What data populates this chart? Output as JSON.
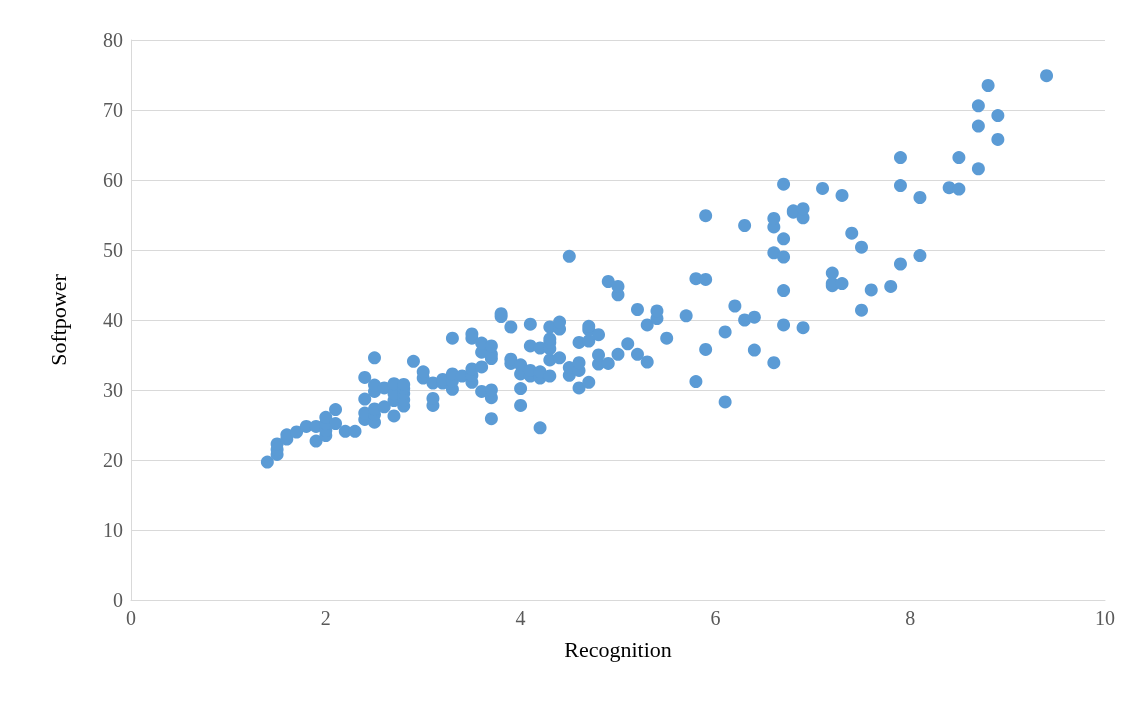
{
  "chart_data": {
    "type": "scatter",
    "xlabel": "Recognition",
    "ylabel": "Softpower",
    "xlim": [
      0,
      10
    ],
    "xticks": [
      0,
      2,
      4,
      6,
      8,
      10
    ],
    "ylim": [
      0,
      80
    ],
    "yticks": [
      0,
      10,
      20,
      30,
      40,
      50,
      60,
      70,
      80
    ],
    "grid": "y",
    "marker": "circle",
    "series": [
      {
        "color": "#5b9bd5",
        "x": [
          1.4,
          1.5,
          1.5,
          1.5,
          1.6,
          1.6,
          1.7,
          1.8,
          1.9,
          1.9,
          2.0,
          2.0,
          2.0,
          2.0,
          2.1,
          2.1,
          2.2,
          2.3,
          2.4,
          2.4,
          2.4,
          2.4,
          2.5,
          2.5,
          2.5,
          2.5,
          2.5,
          2.5,
          2.6,
          2.6,
          2.7,
          2.7,
          2.7,
          2.7,
          2.8,
          2.8,
          2.8,
          2.8,
          2.8,
          2.9,
          3.0,
          3.0,
          3.1,
          3.1,
          3.1,
          3.2,
          3.2,
          3.3,
          3.3,
          3.3,
          3.3,
          3.4,
          3.5,
          3.5,
          3.5,
          3.5,
          3.5,
          3.6,
          3.6,
          3.6,
          3.6,
          3.7,
          3.7,
          3.7,
          3.7,
          3.7,
          3.7,
          3.8,
          3.8,
          3.9,
          3.9,
          3.9,
          4.0,
          4.0,
          4.0,
          4.0,
          4.1,
          4.1,
          4.1,
          4.1,
          4.2,
          4.2,
          4.2,
          4.2,
          4.3,
          4.3,
          4.3,
          4.3,
          4.3,
          4.3,
          4.4,
          4.4,
          4.4,
          4.5,
          4.5,
          4.5,
          4.6,
          4.6,
          4.6,
          4.6,
          4.7,
          4.7,
          4.7,
          4.7,
          4.8,
          4.8,
          4.8,
          4.9,
          4.9,
          5.0,
          5.0,
          5.0,
          5.1,
          5.2,
          5.2,
          5.3,
          5.3,
          5.4,
          5.4,
          5.5,
          5.7,
          5.8,
          5.8,
          5.9,
          5.9,
          5.9,
          6.1,
          6.1,
          6.2,
          6.3,
          6.3,
          6.4,
          6.4,
          6.6,
          6.6,
          6.6,
          6.6,
          6.7,
          6.7,
          6.7,
          6.7,
          6.7,
          6.8,
          6.8,
          6.9,
          6.9,
          6.9,
          7.1,
          7.2,
          7.2,
          7.2,
          7.3,
          7.3,
          7.4,
          7.5,
          7.5,
          7.6,
          7.8,
          7.9,
          7.9,
          7.9,
          8.1,
          8.1,
          8.4,
          8.5,
          8.5,
          8.7,
          8.7,
          8.7,
          8.8,
          8.9,
          8.9,
          9.4
        ],
        "values": [
          19.7,
          20.8,
          21.5,
          22.3,
          23,
          23.6,
          24,
          24.8,
          22.7,
          24.8,
          23.5,
          24.2,
          25.2,
          26.1,
          27.2,
          25.2,
          24.1,
          24.1,
          25.8,
          26.7,
          28.7,
          31.8,
          25.4,
          26.5,
          27.3,
          29.8,
          30.7,
          34.6,
          27.6,
          30.3,
          26.3,
          28.5,
          29.5,
          30.9,
          27.7,
          28.6,
          29.5,
          30.2,
          30.8,
          34.1,
          31.7,
          32.6,
          27.8,
          28.8,
          31.0,
          31.0,
          31.5,
          30.1,
          31.3,
          32.3,
          37.4,
          32.0,
          31.1,
          32.1,
          33.0,
          37.4,
          38.0,
          29.8,
          33.3,
          35.4,
          36.7,
          25.9,
          28.9,
          30.0,
          34.5,
          35.1,
          36.3,
          40.5,
          40.9,
          33.8,
          34.4,
          39.0,
          27.8,
          30.2,
          32.3,
          33.6,
          32.0,
          32.8,
          36.3,
          39.4,
          24.6,
          31.7,
          32.6,
          36.0,
          32.0,
          34.3,
          35.9,
          36.8,
          37.3,
          39.0,
          34.6,
          38.7,
          39.7,
          32.1,
          33.2,
          49.1,
          30.3,
          32.8,
          33.9,
          36.8,
          31.1,
          37.0,
          38.6,
          39.1,
          33.7,
          35.0,
          37.9,
          33.8,
          45.5,
          35.1,
          43.6,
          44.8,
          36.6,
          35.1,
          41.5,
          34.0,
          39.3,
          40.2,
          41.3,
          37.4,
          40.6,
          31.2,
          45.9,
          35.8,
          45.8,
          54.9,
          28.3,
          38.3,
          42.0,
          40.0,
          53.5,
          35.7,
          40.4,
          33.9,
          49.6,
          53.3,
          54.5,
          39.3,
          44.2,
          49.0,
          51.6,
          59.4,
          55.4,
          55.6,
          38.9,
          54.6,
          55.9,
          58.8,
          44.9,
          45.2,
          46.7,
          45.2,
          57.8,
          52.4,
          41.4,
          50.4,
          44.3,
          44.8,
          48.0,
          59.2,
          63.2,
          49.2,
          57.5,
          58.9,
          58.7,
          63.2,
          61.6,
          67.7,
          70.6,
          73.5,
          65.8,
          69.2,
          74.9
        ]
      }
    ]
  }
}
